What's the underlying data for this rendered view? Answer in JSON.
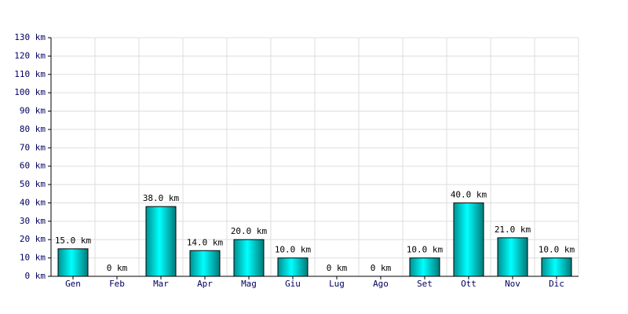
{
  "chart_data": {
    "type": "bar",
    "categories": [
      "Gen",
      "Feb",
      "Mar",
      "Apr",
      "Mag",
      "Giu",
      "Lug",
      "Ago",
      "Set",
      "Ott",
      "Nov",
      "Dic"
    ],
    "values": [
      15,
      0,
      38,
      14,
      20,
      10,
      0,
      0,
      10,
      40,
      21,
      10
    ],
    "value_labels": [
      "15.0 km",
      "0 km",
      "38.0 km",
      "14.0 km",
      "20.0 km",
      "10.0 km",
      "0 km",
      "0 km",
      "10.0 km",
      "40.0 km",
      "21.0 km",
      "10.0 km"
    ],
    "color": "#00e0e0",
    "ylim": [
      0,
      130
    ],
    "yticks": [
      {
        "value": 0,
        "label": "0 km"
      },
      {
        "value": 10,
        "label": "10 km"
      },
      {
        "value": 20,
        "label": "20 km"
      },
      {
        "value": 30,
        "label": "30 km"
      },
      {
        "value": 40,
        "label": "40 km"
      },
      {
        "value": 50,
        "label": "50 km"
      },
      {
        "value": 60,
        "label": "60 km"
      },
      {
        "value": 70,
        "label": "70 km"
      },
      {
        "value": 80,
        "label": "80 km"
      },
      {
        "value": 90,
        "label": "90 km"
      },
      {
        "value": 100,
        "label": "100 km"
      },
      {
        "value": 110,
        "label": "110 km"
      },
      {
        "value": 120,
        "label": "120 km"
      },
      {
        "value": 130,
        "label": "130 km"
      }
    ],
    "grid": true
  }
}
